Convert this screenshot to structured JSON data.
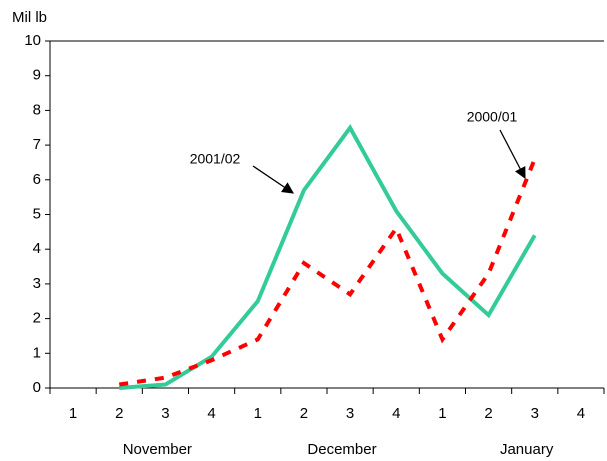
{
  "chart_data": {
    "type": "line",
    "y_label": "Mil lb",
    "categories": [
      "1",
      "2",
      "3",
      "4",
      "1",
      "2",
      "3",
      "4",
      "1",
      "2",
      "3",
      "4"
    ],
    "groups": [
      "November",
      "December",
      "January"
    ],
    "series": [
      {
        "name": "2001/02",
        "color": "#33cc99",
        "dashed": false,
        "values": [
          null,
          0,
          0.1,
          0.9,
          2.5,
          5.7,
          7.5,
          5.1,
          3.3,
          2.1,
          4.4,
          null
        ]
      },
      {
        "name": "2000/01",
        "color": "#ff0000",
        "dashed": true,
        "values": [
          null,
          0.1,
          0.3,
          0.8,
          1.4,
          3.6,
          2.7,
          4.6,
          1.4,
          3.3,
          6.6,
          null
        ]
      }
    ],
    "ylim": [
      0,
      10
    ],
    "yticks": [
      0,
      1,
      2,
      3,
      4,
      5,
      6,
      7,
      8,
      9,
      10
    ],
    "legend": "annotations"
  }
}
